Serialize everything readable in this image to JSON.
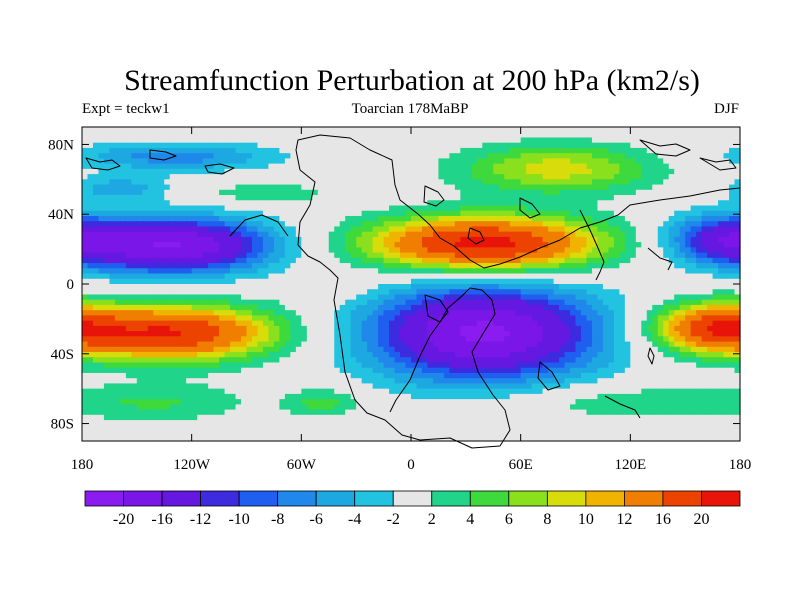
{
  "chart_data": {
    "type": "filled-contour-map",
    "title": "Streamfunction Perturbation at 200 hPa (km2/s)",
    "subtitle_left": "Expt = teckw1",
    "subtitle_center": "Toarcian 178MaBP",
    "subtitle_right": "DJF",
    "xlim": [
      -180,
      180
    ],
    "ylim": [
      -90,
      90
    ],
    "x_ticks": [
      {
        "value": -180,
        "label": "180"
      },
      {
        "value": -120,
        "label": "120W"
      },
      {
        "value": -60,
        "label": "60W"
      },
      {
        "value": 0,
        "label": "0"
      },
      {
        "value": 60,
        "label": "60E"
      },
      {
        "value": 120,
        "label": "120E"
      },
      {
        "value": 180,
        "label": "180"
      }
    ],
    "y_ticks": [
      {
        "value": 80,
        "label": "80N"
      },
      {
        "value": 40,
        "label": "40N"
      },
      {
        "value": 0,
        "label": "0"
      },
      {
        "value": -40,
        "label": "40S"
      },
      {
        "value": -80,
        "label": "80S"
      }
    ],
    "colorbar": {
      "levels": [
        -20,
        -16,
        -12,
        -10,
        -8,
        -6,
        -4,
        -2,
        2,
        4,
        6,
        8,
        10,
        12,
        16,
        20
      ],
      "labels": [
        "-20",
        "-16",
        "-12",
        "-10",
        "-8",
        "-6",
        "-4",
        "-2",
        "2",
        "4",
        "6",
        "8",
        "10",
        "12",
        "16",
        "20"
      ],
      "colors": [
        "#8a1cf0",
        "#7a17e8",
        "#6418e0",
        "#3c2bdf",
        "#1e5ff0",
        "#1f88ea",
        "#1ea8e2",
        "#22c3e0",
        "#e6e6e6",
        "#20d48a",
        "#3ed93c",
        "#8ae01c",
        "#d8dc0a",
        "#f0b400",
        "#f07e00",
        "#ec4400",
        "#e8140a"
      ]
    },
    "centers": [
      {
        "lon": -130,
        "lat": 22,
        "value": -20,
        "sx": 38,
        "sy": 11
      },
      {
        "lon": 40,
        "lat": -28,
        "value": -21,
        "sx": 44,
        "sy": 19
      },
      {
        "lon": 40,
        "lat": 23,
        "value": 22,
        "sx": 45,
        "sy": 11
      },
      {
        "lon": -130,
        "lat": -28,
        "value": 20,
        "sx": 40,
        "sy": 11
      },
      {
        "lon": 80,
        "lat": 66,
        "value": 9,
        "sx": 38,
        "sy": 10
      },
      {
        "lon": -130,
        "lat": 73,
        "value": -7,
        "sx": 40,
        "sy": 6
      },
      {
        "lon": -80,
        "lat": 52,
        "value": 4,
        "sx": 25,
        "sy": 4
      },
      {
        "lon": 170,
        "lat": 26,
        "value": -11,
        "sx": 22,
        "sy": 10
      },
      {
        "lon": 165,
        "lat": -25,
        "value": 16,
        "sx": 24,
        "sy": 10
      },
      {
        "lon": -160,
        "lat": 55,
        "value": -5,
        "sx": 20,
        "sy": 5
      },
      {
        "lon": -135,
        "lat": -68,
        "value": 4,
        "sx": 35,
        "sy": 8
      },
      {
        "lon": -48,
        "lat": -68,
        "value": 5,
        "sx": 15,
        "sy": 6
      },
      {
        "lon": 120,
        "lat": -68,
        "value": 4,
        "sx": 45,
        "sy": 7
      },
      {
        "lon": -50,
        "lat": -5,
        "value": 2,
        "sx": 20,
        "sy": 5
      }
    ]
  }
}
